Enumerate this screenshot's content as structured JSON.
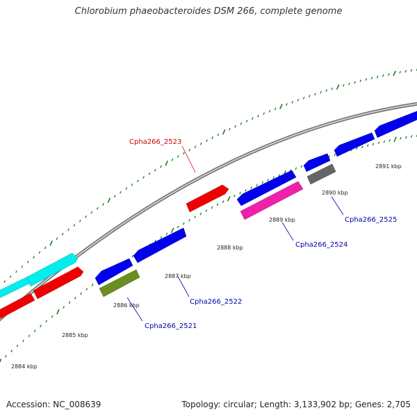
{
  "title": "Chlorobium phaeobacteroides DSM 266, complete genome",
  "footer": {
    "accession": "Accession: NC_008639",
    "summary": "Topology: circular; Length: 3,133,902 bp; Genes: 2,705"
  },
  "scale_labels": [
    "2884 kbp",
    "2885 kbp",
    "2886 kbp",
    "2887 kbp",
    "2888 kbp",
    "2889 kbp",
    "2890 kbp",
    "2891 kbp"
  ],
  "gene_labels": {
    "g2521": "Cpha266_2521",
    "g2522": "Cpha266_2522",
    "g2523": "Cpha266_2523",
    "g2524": "Cpha266_2524",
    "g2525": "Cpha266_2525"
  },
  "colors": {
    "backbone": "#888888",
    "tick": "#1a7a1a",
    "label_forward": "#cc0000",
    "label_reverse": "#0000aa",
    "blue": "#0000ee",
    "red": "#ee0000",
    "cyan": "#00eeee",
    "magenta": "#ee22aa",
    "olive": "#6b8e23",
    "gray": "#666666"
  }
}
